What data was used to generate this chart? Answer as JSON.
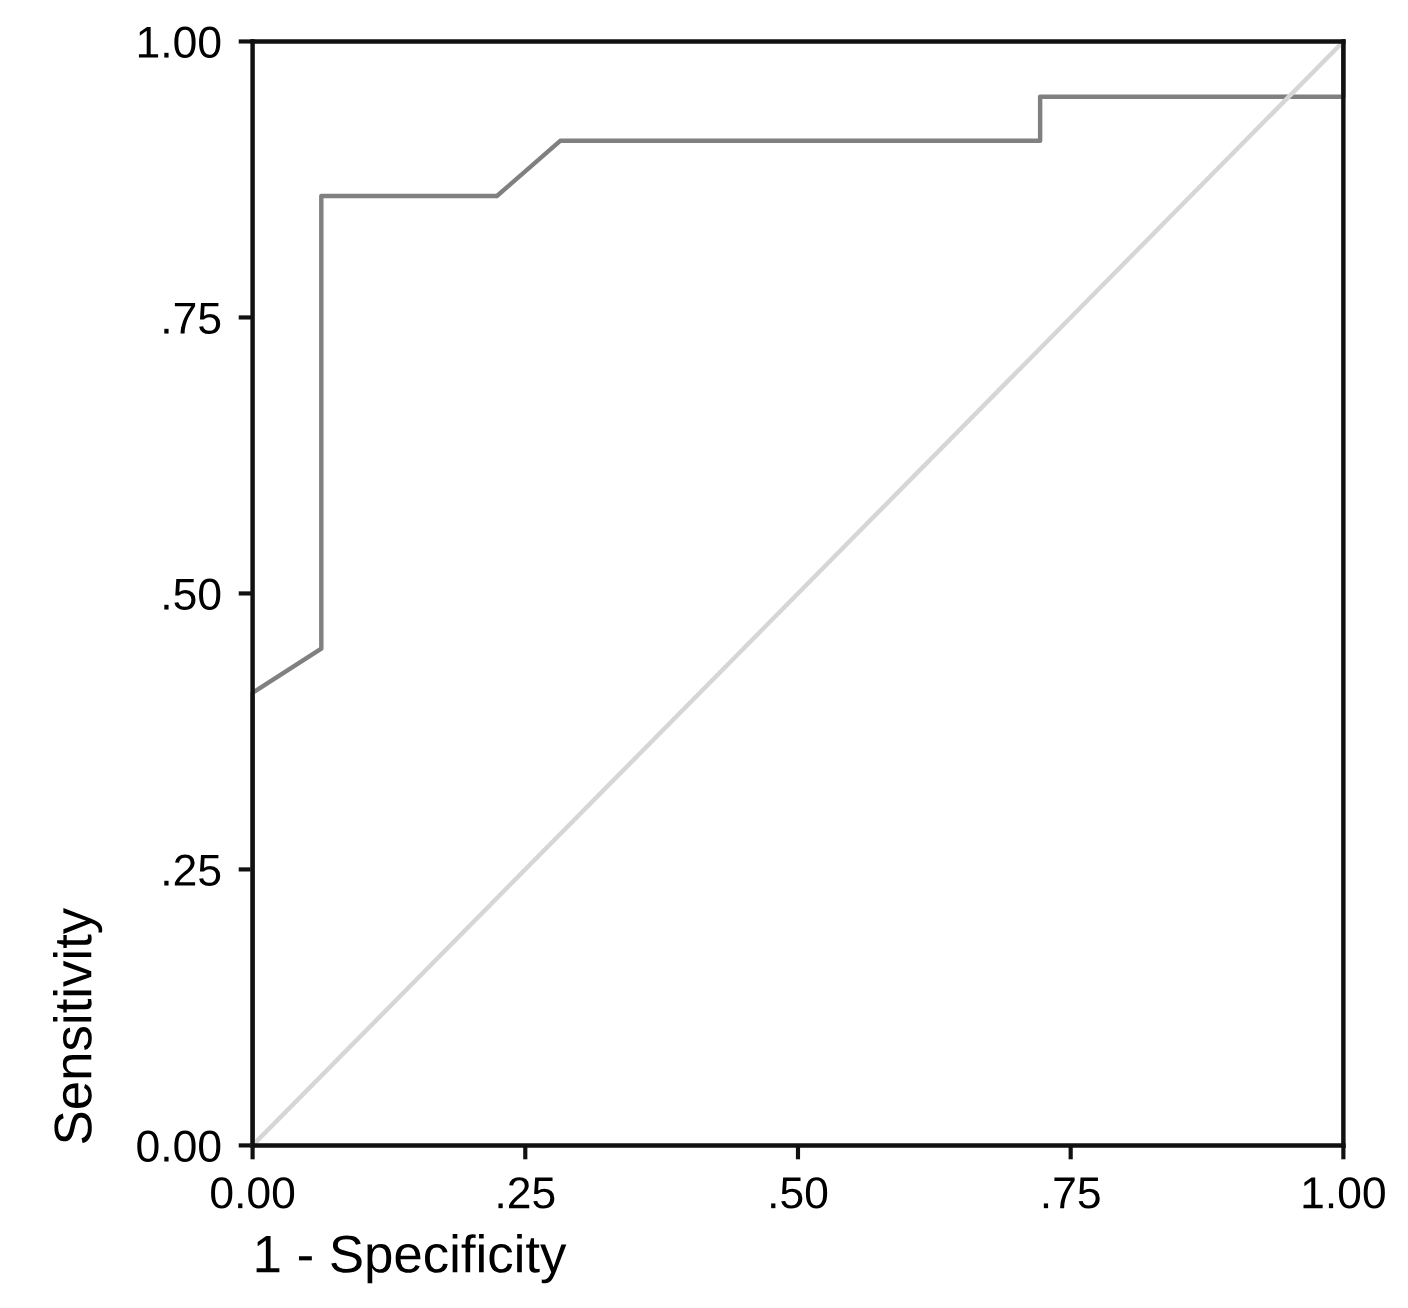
{
  "chart_data": {
    "type": "line",
    "xlabel": "1 - Specificity",
    "ylabel": "Sensitivity",
    "xlim": [
      0,
      1
    ],
    "ylim": [
      0,
      1
    ],
    "xticks": [
      {
        "value": 0,
        "label": "0.00"
      },
      {
        "value": 0.25,
        "label": ".25"
      },
      {
        "value": 0.5,
        "label": ".50"
      },
      {
        "value": 0.75,
        "label": ".75"
      },
      {
        "value": 1,
        "label": "1.00"
      }
    ],
    "yticks": [
      {
        "value": 0,
        "label": "0.00"
      },
      {
        "value": 0.25,
        "label": ".25"
      },
      {
        "value": 0.5,
        "label": ".50"
      },
      {
        "value": 0.75,
        "label": ".75"
      },
      {
        "value": 1,
        "label": "1.00"
      }
    ],
    "series": [
      {
        "color": "#808080",
        "x": [
          0,
          0,
          0.063,
          0.063,
          0.224,
          0.282,
          0.722,
          0.722,
          1,
          1
        ],
        "values": [
          0,
          0.41,
          0.45,
          0.86,
          0.86,
          0.91,
          0.91,
          0.95,
          0.95,
          1
        ]
      },
      {
        "color": "#d6d6d6",
        "x": [
          0,
          1
        ],
        "values": [
          0,
          1
        ]
      }
    ]
  }
}
